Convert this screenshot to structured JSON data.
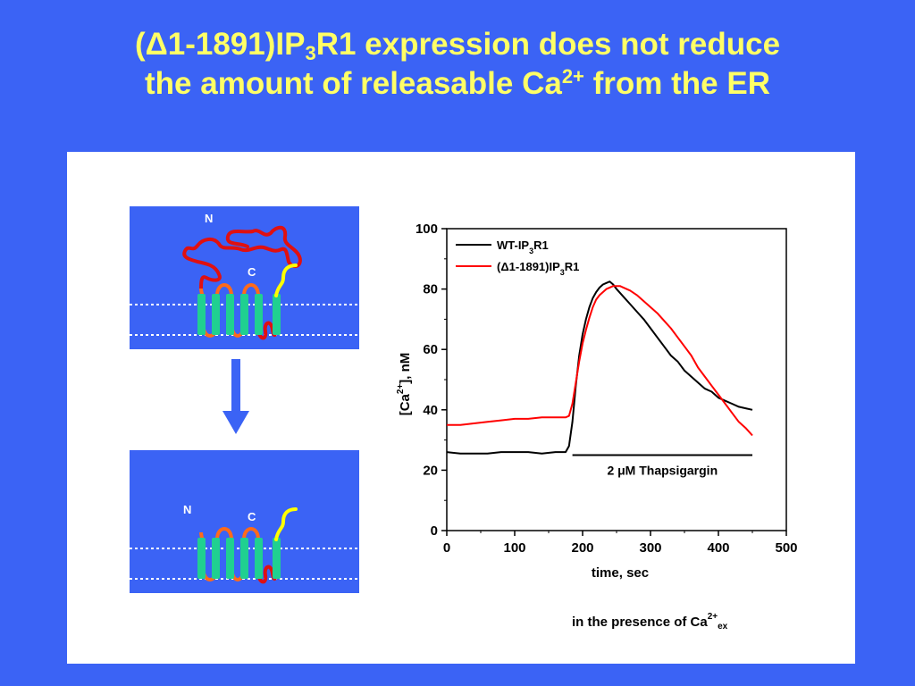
{
  "slide": {
    "title_line1_a": "(Δ1-1891)IP",
    "title_line1_sub": "3",
    "title_line1_b": "R1 expression does not reduce",
    "title_line2_a": "the amount of releasable Ca",
    "title_line2_sup": "2+",
    "title_line2_b": " from the ER",
    "footnote_a": "in the presence of Ca",
    "footnote_sup": "2+",
    "footnote_sub": "ex"
  },
  "schematic_top": {
    "n_label": "N",
    "c_label": "C"
  },
  "schematic_bottom": {
    "n_label": "N",
    "c_label": "C"
  },
  "colors": {
    "background": "#3b63f5",
    "title": "#ffff66",
    "membrane_segment": "#20d090",
    "loop": "#ff6a1a",
    "n_terminus": "#e01010",
    "c_terminus": "#ffff00",
    "wt_series": "#000000",
    "mutant_series": "#ff0000",
    "arrow": "#3b63f5"
  },
  "chart_data": {
    "type": "line",
    "ylabel": "[Ca 2+], nM",
    "ylabel_sup": "2+",
    "xlabel": "time, sec",
    "xlim": [
      0,
      500
    ],
    "ylim": [
      0,
      100
    ],
    "xticks": [
      0,
      100,
      200,
      300,
      400,
      500
    ],
    "yticks": [
      0,
      20,
      40,
      60,
      80,
      100
    ],
    "grid": false,
    "legend_position": "top-left",
    "series": [
      {
        "name": "WT-IP3R1",
        "name_a": "WT-IP",
        "name_sub": "3",
        "name_b": "R1",
        "color": "#000000",
        "x": [
          0,
          20,
          40,
          60,
          80,
          100,
          120,
          140,
          160,
          175,
          180,
          185,
          190,
          195,
          200,
          205,
          210,
          215,
          220,
          225,
          230,
          235,
          240,
          245,
          250,
          260,
          270,
          280,
          290,
          300,
          310,
          320,
          330,
          340,
          350,
          360,
          370,
          380,
          390,
          400,
          410,
          420,
          430,
          440,
          450
        ],
        "y": [
          26,
          25.5,
          25.5,
          25.5,
          26,
          26,
          26,
          25.5,
          26,
          26,
          28,
          36,
          48,
          58,
          65,
          70,
          74,
          77,
          79,
          80.5,
          81.5,
          82,
          82.5,
          81.5,
          80,
          77.5,
          75,
          72.5,
          70,
          67,
          64,
          61,
          58,
          56,
          53,
          51,
          49,
          47,
          46,
          44,
          43,
          42,
          41,
          40.5,
          40
        ]
      },
      {
        "name": "(Δ1-1891)IP3R1",
        "name_a": "(Δ1-1891)IP",
        "name_sub": "3",
        "name_b": "R1",
        "color": "#ff0000",
        "x": [
          0,
          20,
          40,
          60,
          80,
          100,
          120,
          140,
          160,
          175,
          180,
          185,
          190,
          195,
          200,
          205,
          210,
          215,
          220,
          225,
          230,
          235,
          240,
          245,
          250,
          255,
          260,
          270,
          280,
          290,
          300,
          310,
          320,
          330,
          340,
          350,
          360,
          370,
          380,
          390,
          400,
          410,
          420,
          430,
          440,
          450
        ],
        "y": [
          35,
          35,
          35.5,
          36,
          36.5,
          37,
          37,
          37.5,
          37.5,
          37.5,
          38,
          42,
          49,
          56,
          62,
          66.5,
          70.5,
          74,
          76.5,
          78,
          79,
          80,
          80.5,
          81,
          81,
          81,
          80.5,
          79.5,
          78,
          76,
          74,
          72,
          69.5,
          67,
          64,
          61,
          58,
          54,
          51,
          48,
          45,
          42,
          39,
          36,
          34,
          31.5
        ]
      }
    ],
    "annotation": {
      "label_a": "2 ",
      "label_mu": "μ",
      "label_b": "M Thapsigargin",
      "x_start": 185,
      "x_end": 450,
      "y": 25
    }
  }
}
